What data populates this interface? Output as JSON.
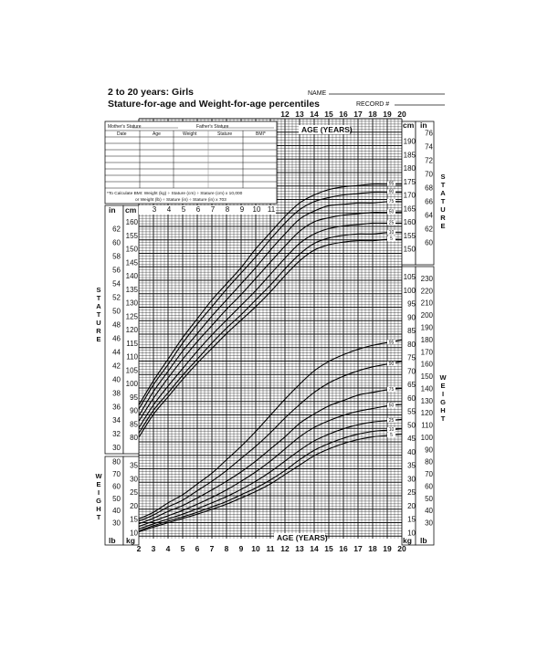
{
  "header": {
    "title_line1": "2 to 20 years: Girls",
    "title_line2": "Stature-for-age and Weight-for-age percentiles",
    "name_label": "NAME",
    "record_label": "RECORD #"
  },
  "record_table": {
    "mothers_stature": "Mother's Stature",
    "fathers_stature": "Father's Stature",
    "columns": [
      "Date",
      "Age",
      "Weight",
      "Stature",
      "BMI*"
    ],
    "bmi_note_1": "*To Calculate BMI: Weight (kg) ÷ Stature (cm) ÷ Stature (cm) x 10,000",
    "bmi_note_2": "or Weight (lb) ÷ Stature (in) ÷ Stature (in) x 703"
  },
  "labels": {
    "age_years": "AGE (YEARS)",
    "stature": "STATURE",
    "weight": "WEIGHT",
    "in": "in",
    "cm": "cm",
    "lb": "lb",
    "kg": "kg"
  },
  "chart_data": {
    "type": "line",
    "title": "Stature-for-age and Weight-for-age percentiles",
    "xlabel": "AGE (YEARS)",
    "x": [
      2,
      3,
      4,
      5,
      6,
      7,
      8,
      9,
      10,
      11,
      12,
      13,
      14,
      15,
      16,
      17,
      18,
      19,
      20
    ],
    "x_ticks_bottom": [
      2,
      3,
      4,
      5,
      6,
      7,
      8,
      9,
      10,
      11,
      12,
      13,
      14,
      15,
      16,
      17,
      18,
      19,
      20
    ],
    "x_ticks_top": [
      12,
      13,
      14,
      15,
      16,
      17,
      18,
      19,
      20
    ],
    "x_ticks_mid": [
      3,
      4,
      5,
      6,
      7,
      8,
      9,
      10,
      11
    ],
    "grid": true,
    "percentile_labels": [
      "95",
      "90",
      "75",
      "50",
      "25",
      "10",
      "5"
    ],
    "stature": {
      "ylabel": "STATURE",
      "unit": "cm",
      "cm_ticks_left": [
        80,
        85,
        90,
        95,
        100,
        105,
        110,
        115,
        120,
        125,
        130,
        135,
        140,
        145,
        150,
        155,
        160
      ],
      "in_ticks_left": [
        30,
        32,
        34,
        36,
        38,
        40,
        42,
        44,
        46,
        48,
        50,
        52,
        54,
        56,
        58,
        60,
        62
      ],
      "cm_ticks_right": [
        150,
        155,
        160,
        165,
        170,
        175,
        180,
        185,
        190
      ],
      "in_ticks_right": [
        60,
        62,
        64,
        66,
        68,
        70,
        72,
        74,
        76
      ],
      "series": [
        {
          "name": "95",
          "values": [
            92,
            101,
            109,
            117,
            124,
            131,
            137,
            143,
            150,
            156,
            162,
            167,
            170,
            172,
            173,
            173.5,
            174,
            174,
            174
          ]
        },
        {
          "name": "90",
          "values": [
            90.5,
            99.5,
            107,
            115,
            122,
            128.5,
            135,
            141,
            147,
            153.5,
            159.5,
            164.5,
            167.5,
            169,
            170,
            170.5,
            171,
            171,
            171
          ]
        },
        {
          "name": "75",
          "values": [
            88,
            97,
            104.5,
            112,
            118.5,
            125,
            131,
            137,
            143,
            149.5,
            155.5,
            161,
            164,
            166,
            166.5,
            167,
            167,
            167.5,
            167.5
          ]
        },
        {
          "name": "50",
          "values": [
            86,
            94.5,
            102,
            109,
            115.5,
            121.5,
            127.5,
            133,
            139,
            145,
            151,
            156.5,
            160,
            161.5,
            162.5,
            163,
            163.5,
            163.5,
            163.7
          ]
        },
        {
          "name": "25",
          "values": [
            83.5,
            92,
            99,
            105.5,
            112,
            118,
            123.5,
            129,
            134.5,
            140.5,
            146.5,
            152,
            155.5,
            157.5,
            158.5,
            159,
            159.5,
            159.5,
            159.5
          ]
        },
        {
          "name": "10",
          "values": [
            81.5,
            90,
            96.5,
            103,
            109,
            115,
            120.5,
            125.5,
            131,
            136.5,
            142.5,
            148,
            152,
            154,
            155,
            155.5,
            155.5,
            156,
            156
          ]
        },
        {
          "name": "5",
          "values": [
            80,
            88.5,
            95,
            101.5,
            107.5,
            113,
            118.5,
            123.5,
            128.5,
            134,
            140,
            145.5,
            149.5,
            151.5,
            152.5,
            153,
            153,
            153.5,
            153.5
          ]
        }
      ]
    },
    "weight": {
      "ylabel": "WEIGHT",
      "unit": "kg",
      "kg_ticks_left": [
        10,
        15,
        20,
        25,
        30,
        35
      ],
      "lb_ticks_left": [
        30,
        40,
        50,
        60,
        70,
        80
      ],
      "kg_ticks_right": [
        10,
        15,
        20,
        25,
        30,
        35,
        40,
        45,
        50,
        55,
        60,
        65,
        70,
        75,
        80,
        85,
        90,
        95,
        100,
        105
      ],
      "lb_ticks_right": [
        30,
        40,
        50,
        60,
        70,
        80,
        90,
        100,
        110,
        120,
        130,
        140,
        150,
        160,
        170,
        180,
        190,
        200,
        210,
        220,
        230
      ],
      "series": [
        {
          "name": "95",
          "values": [
            15,
            17.5,
            21,
            24,
            28,
            32,
            37,
            42,
            47.5,
            53.5,
            59.5,
            65,
            70,
            73.5,
            76,
            78,
            79.5,
            80.5,
            81.5
          ]
        },
        {
          "name": "90",
          "values": [
            14.2,
            16.5,
            19.5,
            22,
            25.5,
            29,
            33,
            37.5,
            42,
            47,
            52.5,
            57.5,
            62,
            65.5,
            68,
            70,
            71.5,
            72.5,
            73.5
          ]
        },
        {
          "name": "75",
          "values": [
            13.2,
            15.3,
            17.8,
            20,
            22.8,
            25.8,
            29,
            32.5,
            36.5,
            41,
            45.5,
            50.5,
            54,
            57,
            59,
            61,
            62,
            63,
            63.5
          ]
        },
        {
          "name": "50",
          "values": [
            12.2,
            14.2,
            16.2,
            18.2,
            20.5,
            23,
            25.8,
            29,
            32.5,
            36.5,
            41,
            45.5,
            49,
            51.5,
            53.5,
            55,
            56,
            57,
            57.5
          ]
        },
        {
          "name": "25",
          "values": [
            11.3,
            13.2,
            15,
            16.8,
            18.8,
            21,
            23.3,
            26,
            29,
            32.5,
            36.5,
            40.5,
            44,
            46.5,
            48.5,
            50,
            51,
            51.5,
            52
          ]
        },
        {
          "name": "10",
          "values": [
            10.6,
            12.5,
            14.2,
            15.8,
            17.5,
            19.5,
            21.5,
            24,
            26.5,
            29.5,
            33,
            37,
            40.5,
            43,
            45,
            46.5,
            47.5,
            48,
            48.5
          ]
        },
        {
          "name": "5",
          "values": [
            10.2,
            12,
            13.6,
            15.2,
            16.8,
            18.6,
            20.5,
            22.8,
            25.2,
            28,
            31.5,
            35,
            38.5,
            41,
            43,
            44.5,
            45.5,
            46,
            46.5
          ]
        }
      ]
    }
  }
}
